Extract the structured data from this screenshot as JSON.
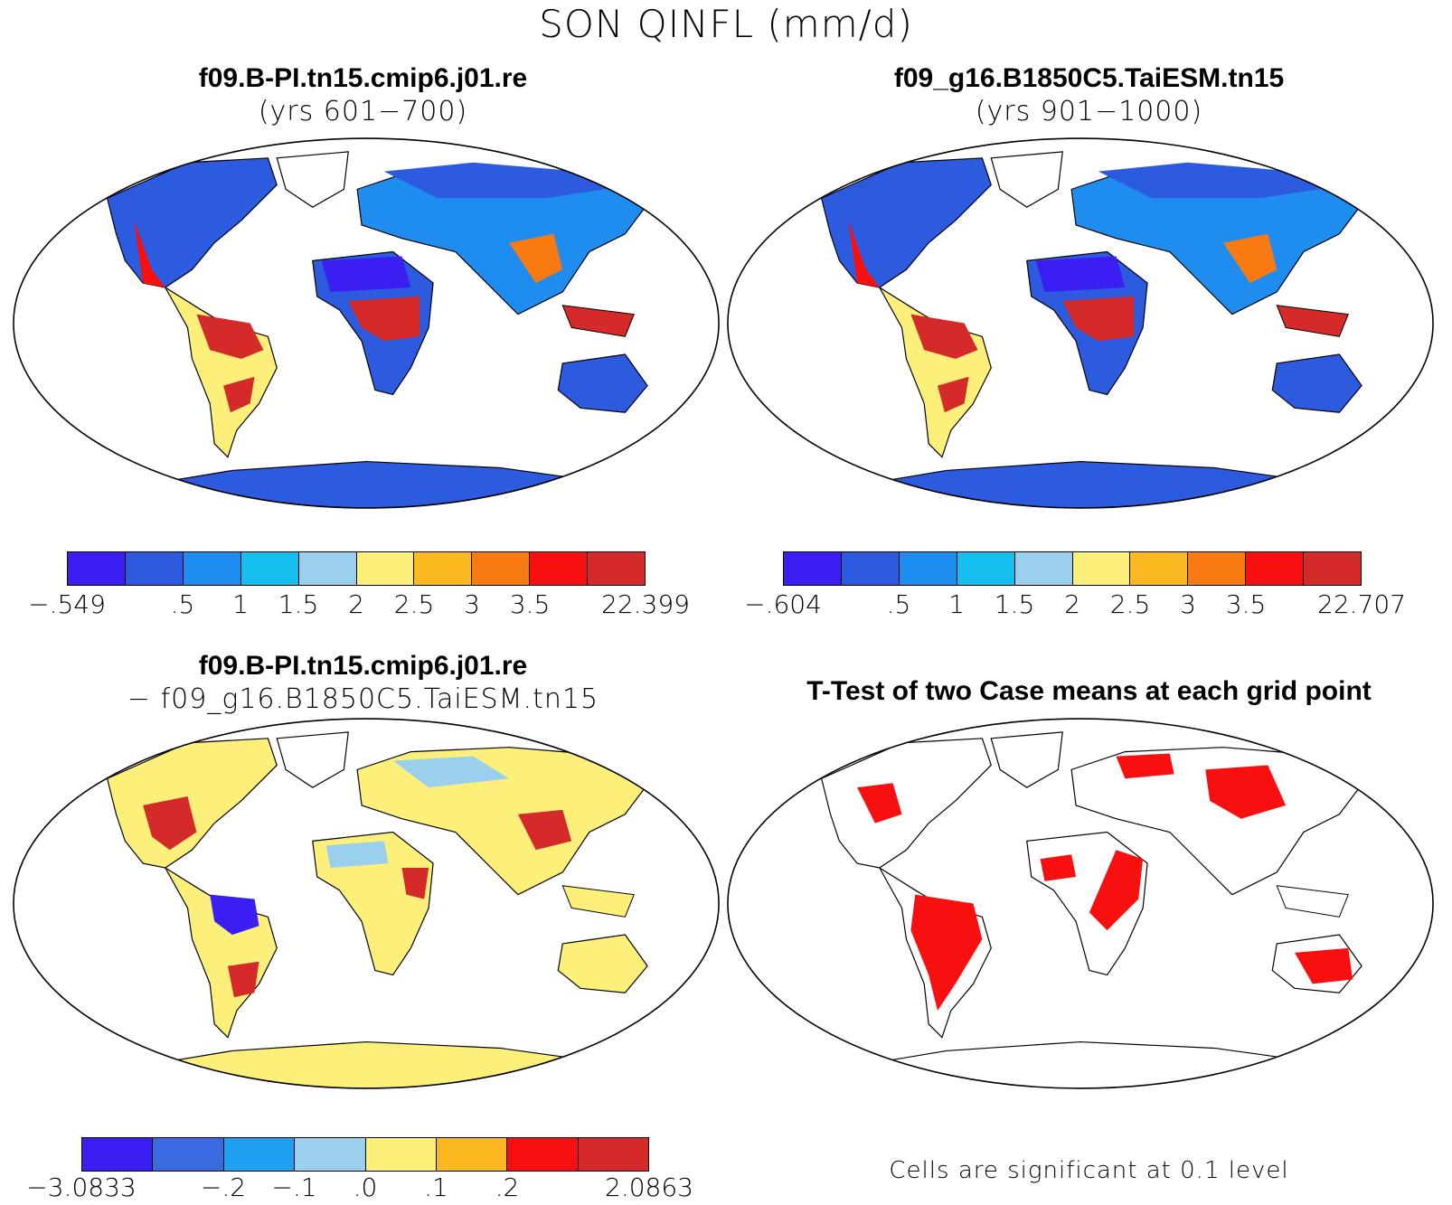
{
  "title": "SON QINFL (mm/d)",
  "panels": [
    {
      "id": "case1",
      "title_line1": "f09.B-PI.tn15.cmip6.j01.re",
      "title_line2": "(yrs 601−700)",
      "colorbar": {
        "colors": [
          "#3a1ef2",
          "#2c5be0",
          "#1f8cf0",
          "#14bff0",
          "#9ad0ee",
          "#fcf07a",
          "#fbb820",
          "#f87a10",
          "#f81010",
          "#d42a2a"
        ],
        "labels": [
          "−.549",
          ".5",
          "1",
          "1.5",
          "2",
          "2.5",
          "3",
          "3.5",
          "22.399"
        ]
      }
    },
    {
      "id": "case2",
      "title_line1": "f09_g16.B1850C5.TaiESM.tn15",
      "title_line2": "(yrs 901−1000)",
      "colorbar": {
        "colors": [
          "#3a1ef2",
          "#2c5be0",
          "#1f8cf0",
          "#14bff0",
          "#9ad0ee",
          "#fcf07a",
          "#fbb820",
          "#f87a10",
          "#f81010",
          "#d42a2a"
        ],
        "labels": [
          "−.604",
          ".5",
          "1",
          "1.5",
          "2",
          "2.5",
          "3",
          "3.5",
          "22.707"
        ]
      }
    },
    {
      "id": "diff",
      "title_line1": "f09.B-PI.tn15.cmip6.j01.re",
      "title_line2": "− f09_g16.B1850C5.TaiESM.tn15",
      "colorbar": {
        "colors": [
          "#3a1ef2",
          "#3a6ae0",
          "#1fa0f0",
          "#9ad0ee",
          "#fcf07a",
          "#fbb820",
          "#f81010",
          "#d42a2a"
        ],
        "labels": [
          "−3.0833",
          "−.2",
          "−.1",
          ".0",
          ".1",
          ".2",
          "2.0863"
        ]
      }
    },
    {
      "id": "ttest",
      "title_line1": "T-Test of two Case means at each grid point",
      "note": "Cells are significant at 0.1 level"
    }
  ],
  "map_colors": {
    "ocean": "#ffffff",
    "land_dry": "#2c5be0",
    "land_mid": "#1f8cf0",
    "land_wet": "#d42a2a",
    "diff_land": "#fcf07a",
    "ttest_sig": "#f81010"
  }
}
